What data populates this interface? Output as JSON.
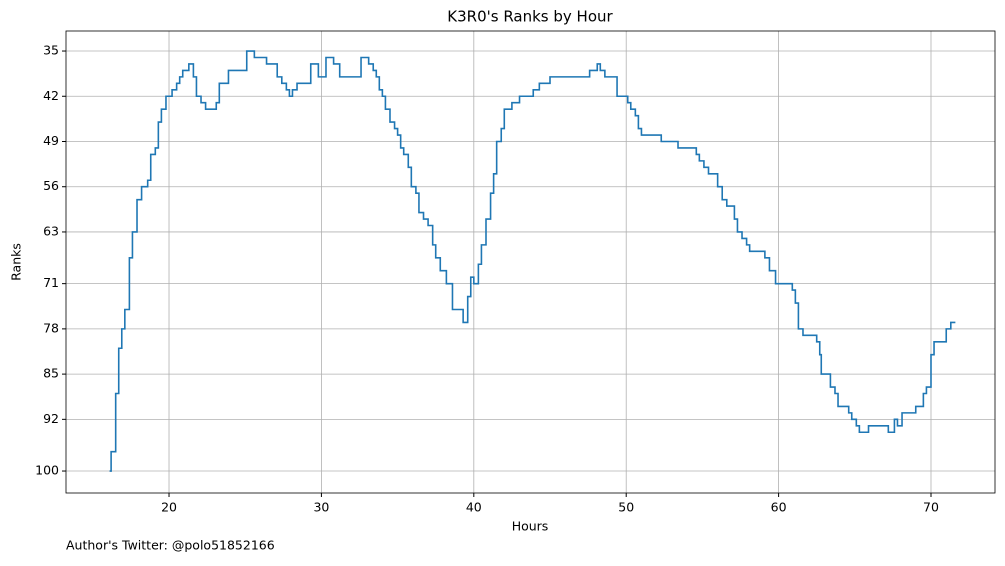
{
  "chart_data": {
    "type": "step",
    "title": "K3R0's Ranks by Hour",
    "x_label": "Hours",
    "y_label": "Ranks",
    "footer": "Author's Twitter: @polo51852166",
    "grid": true,
    "color": "#1f77b4",
    "xlim": [
      13.24,
      74.2
    ],
    "ylim": [
      103.4,
      31.9
    ],
    "xticks": [
      20,
      30,
      40,
      50,
      60,
      70
    ],
    "yticks": [
      35,
      42,
      49,
      56,
      63,
      71,
      78,
      85,
      92,
      100
    ],
    "x": [
      16.1,
      16.2,
      16.5,
      16.7,
      16.9,
      17.1,
      17.4,
      17.6,
      17.9,
      18.2,
      18.6,
      18.8,
      19.1,
      19.3,
      19.5,
      19.8,
      20.2,
      20.5,
      20.7,
      20.9,
      21.3,
      21.6,
      21.8,
      22.1,
      22.4,
      23.1,
      23.3,
      23.9,
      25.1,
      25.6,
      26.4,
      27.1,
      27.4,
      27.7,
      27.9,
      28.1,
      28.4,
      29.3,
      29.8,
      30.3,
      30.8,
      31.2,
      32.6,
      33.1,
      33.4,
      33.6,
      33.8,
      34.0,
      34.2,
      34.5,
      34.8,
      35.0,
      35.2,
      35.4,
      35.7,
      35.9,
      36.2,
      36.4,
      36.7,
      37.0,
      37.3,
      37.5,
      37.8,
      38.2,
      38.6,
      39.3,
      39.6,
      39.8,
      40.0,
      40.3,
      40.5,
      40.8,
      41.1,
      41.3,
      41.5,
      41.8,
      42.0,
      42.5,
      43.0,
      43.9,
      44.3,
      45.0,
      47.6,
      48.1,
      48.3,
      48.6,
      49.4,
      50.1,
      50.3,
      50.6,
      50.8,
      51.0,
      52.3,
      53.4,
      54.6,
      54.8,
      55.1,
      55.4,
      56.0,
      56.3,
      56.6,
      57.1,
      57.3,
      57.6,
      57.9,
      58.1,
      59.1,
      59.4,
      59.8,
      60.9,
      61.1,
      61.3,
      61.6,
      62.5,
      62.7,
      62.8,
      63.4,
      63.7,
      63.9,
      64.6,
      64.8,
      65.1,
      65.3,
      65.9,
      67.2,
      67.6,
      67.8,
      68.1,
      69.0,
      69.5,
      69.7,
      70.0,
      70.2,
      71.0,
      71.3,
      71.6
    ],
    "values": [
      100,
      97,
      88,
      81,
      78,
      75,
      67,
      63,
      58,
      56,
      55,
      51,
      50,
      46,
      44,
      42,
      41,
      40,
      39,
      38,
      37,
      39,
      42,
      43,
      44,
      43,
      40,
      38,
      35,
      36,
      37,
      39,
      40,
      41,
      42,
      41,
      40,
      37,
      39,
      36,
      37,
      39,
      36,
      37,
      38,
      39,
      41,
      42,
      44,
      46,
      47,
      48,
      50,
      51,
      53,
      56,
      57,
      60,
      61,
      62,
      65,
      67,
      69,
      71,
      75,
      77,
      73,
      70,
      71,
      68,
      65,
      61,
      57,
      54,
      49,
      47,
      44,
      43,
      42,
      41,
      40,
      39,
      38,
      37,
      38,
      39,
      42,
      43,
      44,
      45,
      47,
      48,
      49,
      50,
      51,
      52,
      53,
      54,
      56,
      58,
      59,
      61,
      63,
      64,
      65,
      66,
      67,
      69,
      71,
      72,
      74,
      78,
      79,
      80,
      82,
      85,
      87,
      88,
      90,
      91,
      92,
      93,
      94,
      93,
      94,
      92,
      93,
      91,
      90,
      88,
      87,
      82,
      80,
      78,
      77,
      77
    ]
  }
}
